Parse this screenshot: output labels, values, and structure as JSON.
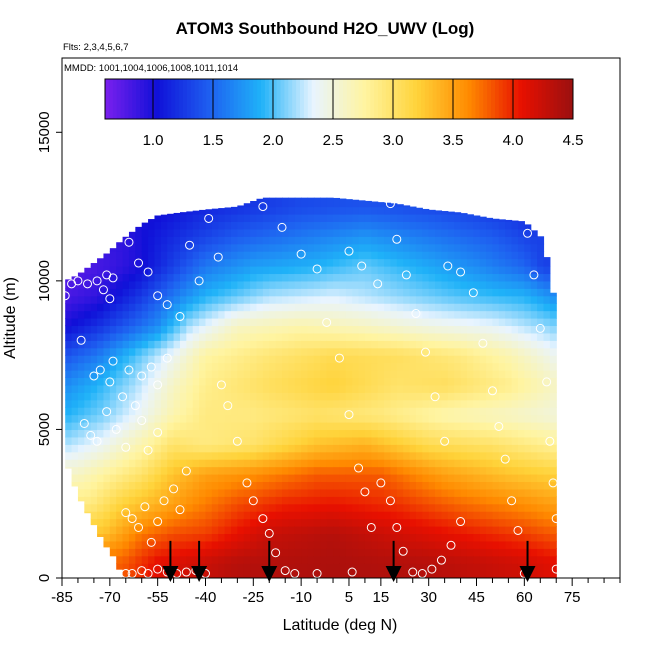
{
  "chart_data": {
    "type": "heatmap",
    "title": "ATOM3 Southbound H2O_UWV (Log)",
    "flights_label": "Flts: 2,3,4,5,6,7",
    "dates_label": "MMDD: 1001,1004,1006,1008,1011,1014",
    "xlabel": "Latitude (deg N)",
    "ylabel": "Altitude (m)",
    "xlim": [
      -85,
      90
    ],
    "ylim": [
      0,
      17500
    ],
    "x_ticks": [
      -85,
      -70,
      -55,
      -40,
      -25,
      -10,
      5,
      15,
      30,
      45,
      60,
      75
    ],
    "x_minor_ticks": [
      -80,
      -75,
      -65,
      -60,
      -50,
      -45,
      -35,
      -30,
      -20,
      -15,
      -5,
      0,
      10,
      20,
      25,
      35,
      40,
      50,
      55,
      65,
      70,
      80,
      85,
      90
    ],
    "y_ticks": [
      0,
      5000,
      10000,
      15000
    ],
    "colorbar": {
      "min": 0.6,
      "max": 4.5,
      "ticks": [
        "1.0",
        "1.5",
        "2.0",
        "2.5",
        "3.0",
        "3.5",
        "4.0",
        "4.5"
      ],
      "tick_values": [
        1.0,
        1.5,
        2.0,
        2.5,
        3.0,
        3.5,
        4.0,
        4.5
      ],
      "stops": [
        "#7b20ee",
        "#1010d8",
        "#1e5ff0",
        "#1fb2f8",
        "#e8f4ff",
        "#fff4a0",
        "#ffd33a",
        "#ff8a00",
        "#e81000",
        "#9a1010"
      ]
    },
    "profile_tops": [
      [
        -84,
        10000
      ],
      [
        -80,
        10200
      ],
      [
        -75,
        10600
      ],
      [
        -70,
        11000
      ],
      [
        -66,
        11400
      ],
      [
        -60,
        11900
      ],
      [
        -55,
        12200
      ],
      [
        -48,
        12300
      ],
      [
        -40,
        12400
      ],
      [
        -30,
        12500
      ],
      [
        -22,
        12800
      ],
      [
        -10,
        12800
      ],
      [
        0,
        12800
      ],
      [
        10,
        12700
      ],
      [
        20,
        12600
      ],
      [
        30,
        12400
      ],
      [
        40,
        12300
      ],
      [
        50,
        12100
      ],
      [
        60,
        12000
      ],
      [
        66,
        11400
      ],
      [
        70,
        9000
      ]
    ],
    "profile_bottoms": [
      [
        -84,
        4000
      ],
      [
        -80,
        2800
      ],
      [
        -76,
        2000
      ],
      [
        -72,
        1200
      ],
      [
        -68,
        600
      ],
      [
        -66,
        0
      ],
      [
        70,
        0
      ]
    ],
    "field_levels": [
      {
        "alt": 500,
        "points": [
          [
            -66,
            3.8
          ],
          [
            -55,
            4.1
          ],
          [
            -45,
            4.2
          ],
          [
            -30,
            4.35
          ],
          [
            0,
            4.4
          ],
          [
            30,
            4.35
          ],
          [
            60,
            4.2
          ],
          [
            70,
            4.1
          ]
        ]
      },
      {
        "alt": 1500,
        "points": [
          [
            -72,
            3.3
          ],
          [
            -60,
            3.7
          ],
          [
            -50,
            3.85
          ],
          [
            -40,
            3.9
          ],
          [
            -20,
            4.25
          ],
          [
            0,
            4.35
          ],
          [
            20,
            4.2
          ],
          [
            40,
            4.05
          ],
          [
            60,
            3.9
          ],
          [
            70,
            3.8
          ]
        ]
      },
      {
        "alt": 2500,
        "points": [
          [
            -76,
            2.9
          ],
          [
            -66,
            3.2
          ],
          [
            -55,
            3.4
          ],
          [
            -45,
            3.6
          ],
          [
            -30,
            3.85
          ],
          [
            -15,
            4.0
          ],
          [
            0,
            4.05
          ],
          [
            20,
            3.95
          ],
          [
            40,
            3.75
          ],
          [
            60,
            3.6
          ],
          [
            70,
            3.5
          ]
        ]
      },
      {
        "alt": 3500,
        "points": [
          [
            -80,
            2.6
          ],
          [
            -70,
            2.8
          ],
          [
            -60,
            3.0
          ],
          [
            -50,
            3.3
          ],
          [
            -40,
            3.5
          ],
          [
            -25,
            3.6
          ],
          [
            -5,
            3.8
          ],
          [
            15,
            3.8
          ],
          [
            35,
            3.5
          ],
          [
            55,
            3.3
          ],
          [
            70,
            3.2
          ]
        ]
      },
      {
        "alt": 4500,
        "points": [
          [
            -84,
            2.2
          ],
          [
            -72,
            2.4
          ],
          [
            -60,
            2.7
          ],
          [
            -50,
            3.0
          ],
          [
            -40,
            2.9
          ],
          [
            -25,
            3.0
          ],
          [
            -5,
            3.3
          ],
          [
            10,
            3.4
          ],
          [
            30,
            3.1
          ],
          [
            50,
            3.0
          ],
          [
            70,
            2.8
          ]
        ]
      },
      {
        "alt": 5500,
        "points": [
          [
            -84,
            1.9
          ],
          [
            -72,
            2.1
          ],
          [
            -60,
            2.4
          ],
          [
            -50,
            2.7
          ],
          [
            -40,
            2.9
          ],
          [
            -25,
            2.9
          ],
          [
            -5,
            3.0
          ],
          [
            15,
            2.9
          ],
          [
            35,
            2.7
          ],
          [
            55,
            2.6
          ],
          [
            70,
            2.5
          ]
        ]
      },
      {
        "alt": 6500,
        "points": [
          [
            -84,
            1.7
          ],
          [
            -74,
            1.9
          ],
          [
            -62,
            2.2
          ],
          [
            -50,
            2.6
          ],
          [
            -40,
            2.85
          ],
          [
            -20,
            3.05
          ],
          [
            0,
            3.2
          ],
          [
            20,
            3.0
          ],
          [
            35,
            3.05
          ],
          [
            55,
            2.85
          ],
          [
            70,
            2.6
          ]
        ]
      },
      {
        "alt": 7500,
        "points": [
          [
            -84,
            1.4
          ],
          [
            -74,
            1.6
          ],
          [
            -62,
            2.0
          ],
          [
            -50,
            2.4
          ],
          [
            -40,
            2.75
          ],
          [
            -20,
            2.95
          ],
          [
            0,
            3.1
          ],
          [
            20,
            3.05
          ],
          [
            40,
            2.9
          ],
          [
            55,
            2.7
          ],
          [
            70,
            2.4
          ]
        ]
      },
      {
        "alt": 8500,
        "points": [
          [
            -84,
            1.0
          ],
          [
            -74,
            1.2
          ],
          [
            -62,
            1.5
          ],
          [
            -55,
            1.7
          ],
          [
            -45,
            2.2
          ],
          [
            -30,
            2.6
          ],
          [
            -10,
            2.7
          ],
          [
            10,
            2.6
          ],
          [
            30,
            2.45
          ],
          [
            50,
            2.35
          ],
          [
            70,
            2.1
          ]
        ]
      },
      {
        "alt": 9500,
        "points": [
          [
            -84,
            0.8
          ],
          [
            -74,
            0.9
          ],
          [
            -62,
            1.2
          ],
          [
            -50,
            1.6
          ],
          [
            -40,
            1.9
          ],
          [
            -20,
            2.2
          ],
          [
            0,
            2.3
          ],
          [
            20,
            2.15
          ],
          [
            40,
            2.0
          ],
          [
            60,
            1.9
          ],
          [
            70,
            1.7
          ]
        ]
      },
      {
        "alt": 10500,
        "points": [
          [
            -80,
            0.75
          ],
          [
            -70,
            0.85
          ],
          [
            -60,
            1.0
          ],
          [
            -50,
            1.3
          ],
          [
            -40,
            1.6
          ],
          [
            -25,
            1.8
          ],
          [
            -5,
            1.9
          ],
          [
            10,
            2.05
          ],
          [
            25,
            1.9
          ],
          [
            45,
            1.7
          ],
          [
            60,
            1.5
          ],
          [
            66,
            1.3
          ]
        ]
      },
      {
        "alt": 11500,
        "points": [
          [
            -66,
            0.9
          ],
          [
            -55,
            1.1
          ],
          [
            -45,
            1.25
          ],
          [
            -30,
            1.45
          ],
          [
            -10,
            1.6
          ],
          [
            10,
            1.75
          ],
          [
            30,
            1.6
          ],
          [
            50,
            1.45
          ],
          [
            62,
            1.3
          ]
        ]
      },
      {
        "alt": 12500,
        "points": [
          [
            -55,
            1.0
          ],
          [
            -40,
            1.15
          ],
          [
            -25,
            1.25
          ],
          [
            -10,
            1.35
          ],
          [
            10,
            1.4
          ],
          [
            30,
            1.35
          ],
          [
            50,
            1.25
          ],
          [
            60,
            1.15
          ]
        ]
      }
    ],
    "samples": [
      [
        -84,
        9500
      ],
      [
        -82,
        9900
      ],
      [
        -80,
        10000
      ],
      [
        -79,
        8000
      ],
      [
        -77,
        9900
      ],
      [
        -74,
        10000
      ],
      [
        -72,
        9700
      ],
      [
        -71,
        10200
      ],
      [
        -70,
        9400
      ],
      [
        -69,
        10100
      ],
      [
        -75,
        6800
      ],
      [
        -73,
        7000
      ],
      [
        -70,
        6600
      ],
      [
        -69,
        7300
      ],
      [
        -66,
        6100
      ],
      [
        -64,
        7000
      ],
      [
        -60,
        6800
      ],
      [
        -57,
        7100
      ],
      [
        -55,
        6500
      ],
      [
        -52,
        7400
      ],
      [
        -78,
        5200
      ],
      [
        -76,
        4800
      ],
      [
        -74,
        4600
      ],
      [
        -71,
        5600
      ],
      [
        -68,
        5000
      ],
      [
        -65,
        4400
      ],
      [
        -62,
        5800
      ],
      [
        -60,
        5300
      ],
      [
        -58,
        4300
      ],
      [
        -55,
        4900
      ],
      [
        -65,
        2200
      ],
      [
        -63,
        2000
      ],
      [
        -61,
        1700
      ],
      [
        -59,
        2400
      ],
      [
        -57,
        1200
      ],
      [
        -55,
        1900
      ],
      [
        -53,
        2600
      ],
      [
        -50,
        3000
      ],
      [
        -48,
        2300
      ],
      [
        -46,
        3600
      ],
      [
        -65,
        150
      ],
      [
        -63,
        150
      ],
      [
        -60,
        250
      ],
      [
        -58,
        150
      ],
      [
        -55,
        300
      ],
      [
        -52,
        200
      ],
      [
        -49,
        150
      ],
      [
        -46,
        200
      ],
      [
        -43,
        250
      ],
      [
        -40,
        150
      ],
      [
        -64,
        11300
      ],
      [
        -61,
        10600
      ],
      [
        -58,
        10300
      ],
      [
        -55,
        9500
      ],
      [
        -52,
        9200
      ],
      [
        -48,
        8800
      ],
      [
        -45,
        11200
      ],
      [
        -42,
        10000
      ],
      [
        -39,
        12100
      ],
      [
        -36,
        10800
      ],
      [
        -35,
        6500
      ],
      [
        -33,
        5800
      ],
      [
        -30,
        4600
      ],
      [
        -27,
        3200
      ],
      [
        -25,
        2600
      ],
      [
        -22,
        2000
      ],
      [
        -20,
        1500
      ],
      [
        -18,
        850
      ],
      [
        -15,
        250
      ],
      [
        -12,
        150
      ],
      [
        -22,
        12500
      ],
      [
        -16,
        11800
      ],
      [
        -10,
        10900
      ],
      [
        -5,
        10400
      ],
      [
        -2,
        8600
      ],
      [
        2,
        7400
      ],
      [
        5,
        5500
      ],
      [
        8,
        3700
      ],
      [
        10,
        2900
      ],
      [
        12,
        1700
      ],
      [
        5,
        11000
      ],
      [
        9,
        10500
      ],
      [
        14,
        9900
      ],
      [
        18,
        12600
      ],
      [
        20,
        11400
      ],
      [
        23,
        10200
      ],
      [
        26,
        8900
      ],
      [
        29,
        7600
      ],
      [
        32,
        6100
      ],
      [
        35,
        4600
      ],
      [
        15,
        3200
      ],
      [
        18,
        2600
      ],
      [
        20,
        1700
      ],
      [
        22,
        900
      ],
      [
        25,
        200
      ],
      [
        28,
        150
      ],
      [
        31,
        300
      ],
      [
        34,
        600
      ],
      [
        37,
        1100
      ],
      [
        40,
        1900
      ],
      [
        36,
        10500
      ],
      [
        40,
        10300
      ],
      [
        44,
        9600
      ],
      [
        47,
        7900
      ],
      [
        50,
        6300
      ],
      [
        52,
        5100
      ],
      [
        54,
        4000
      ],
      [
        56,
        2600
      ],
      [
        58,
        1600
      ],
      [
        60,
        150
      ],
      [
        61,
        11600
      ],
      [
        63,
        10200
      ],
      [
        65,
        8400
      ],
      [
        67,
        6600
      ],
      [
        68,
        4600
      ],
      [
        69,
        3200
      ],
      [
        70,
        2000
      ],
      [
        70,
        300
      ],
      [
        -5,
        150
      ],
      [
        6,
        200
      ]
    ],
    "flight_markers": [
      -51,
      -42,
      -20,
      19,
      61
    ]
  }
}
